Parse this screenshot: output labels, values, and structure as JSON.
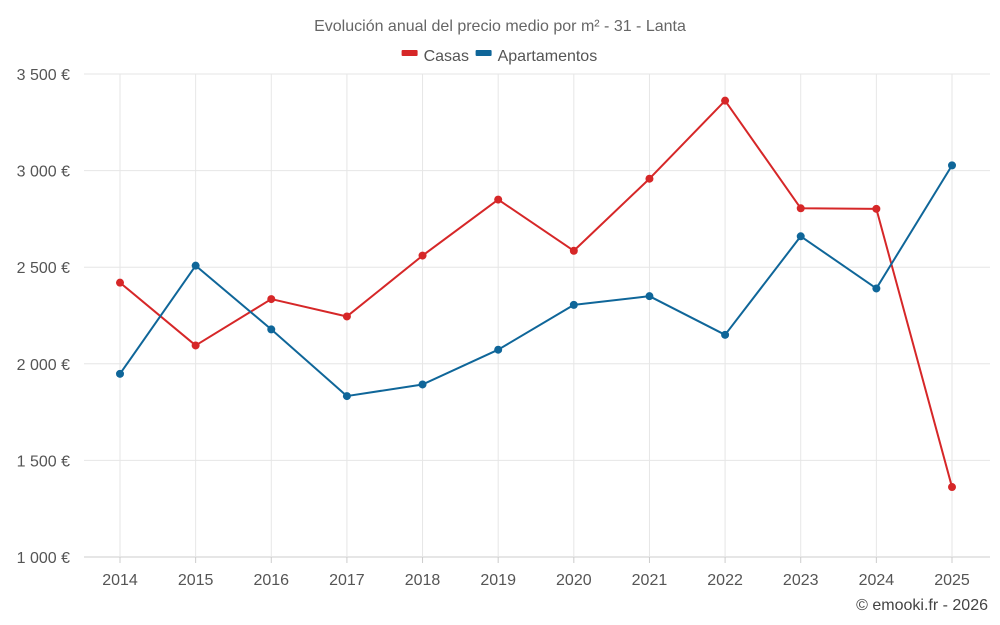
{
  "chart_data": {
    "type": "line",
    "title": "Evolución anual del precio medio por m² - 31 - Lanta",
    "categories": [
      "2014",
      "2015",
      "2016",
      "2017",
      "2018",
      "2019",
      "2020",
      "2021",
      "2022",
      "2023",
      "2024",
      "2025"
    ],
    "series": [
      {
        "name": "Casas",
        "color": "#d62728",
        "values": [
          2420,
          2095,
          2335,
          2245,
          2560,
          2850,
          2585,
          2958,
          3362,
          2805,
          2802,
          1362
        ]
      },
      {
        "name": "Apartamentos",
        "color": "#0f6699",
        "values": [
          1948,
          2508,
          2178,
          1833,
          1893,
          2073,
          2305,
          2350,
          2150,
          2660,
          2390,
          3027
        ]
      }
    ],
    "y_ticks": [
      1000,
      1500,
      2000,
      2500,
      3000,
      3500
    ],
    "y_tick_labels": [
      "1 000 €",
      "1 500 €",
      "2 000 €",
      "2 500 €",
      "3 000 €",
      "3 500 €"
    ],
    "ylim": [
      1000,
      3500
    ],
    "xlabel": "",
    "ylabel": "",
    "grid": true,
    "legend_position": "top-center"
  },
  "credit": "© emooki.fr - 2026"
}
